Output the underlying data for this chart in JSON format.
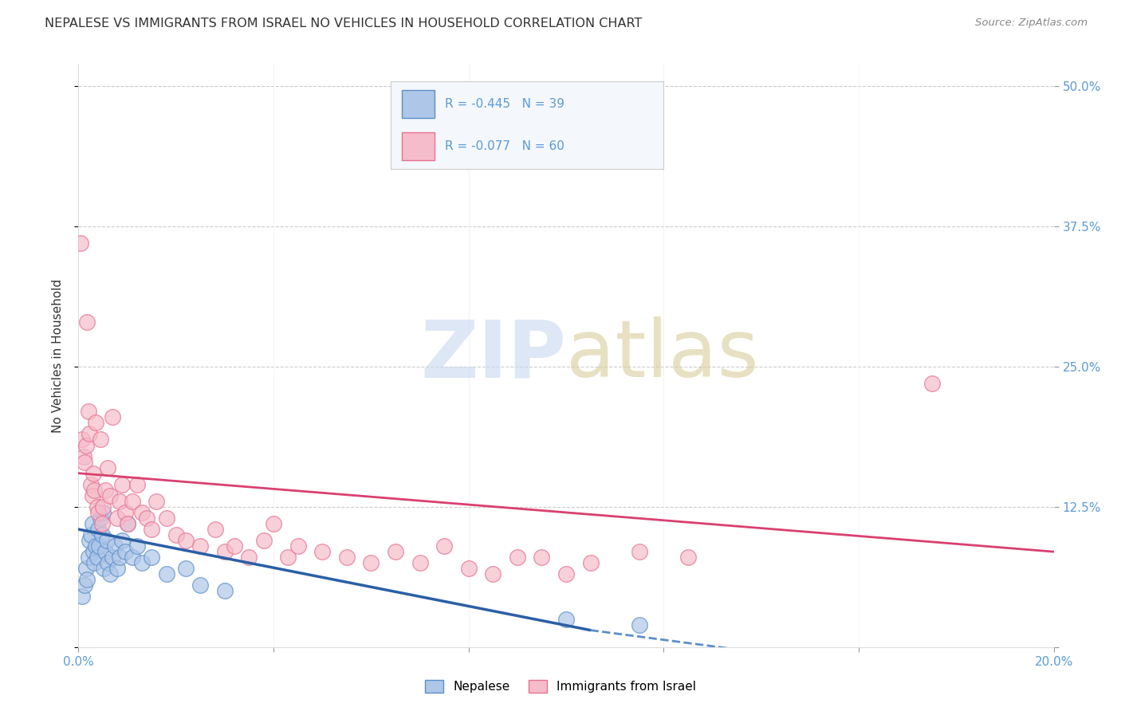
{
  "title": "NEPALESE VS IMMIGRANTS FROM ISRAEL NO VEHICLES IN HOUSEHOLD CORRELATION CHART",
  "source": "Source: ZipAtlas.com",
  "ylabel": "No Vehicles in Household",
  "xmin": 0.0,
  "xmax": 20.0,
  "ymin": 0.0,
  "ymax": 52.0,
  "legend_r1": "-0.445",
  "legend_n1": "39",
  "legend_r2": "-0.077",
  "legend_n2": "60",
  "blue_scatter_color": "#aec6e8",
  "blue_edge_color": "#5b8fc9",
  "pink_scatter_color": "#f5bccb",
  "pink_edge_color": "#e87090",
  "blue_line_color": "#2b5fa5",
  "pink_line_color": "#d94070",
  "tick_color": "#5b9bd5",
  "grid_color": "#cccccc",
  "text_color": "#333333",
  "source_color": "#888888",
  "watermark_zip_color": "#c8d8f0",
  "watermark_atlas_color": "#d8cc9a",
  "blue_scatter_x": [
    0.08,
    0.12,
    0.15,
    0.18,
    0.2,
    0.22,
    0.25,
    0.28,
    0.3,
    0.32,
    0.35,
    0.38,
    0.4,
    0.42,
    0.45,
    0.48,
    0.5,
    0.52,
    0.55,
    0.58,
    0.6,
    0.65,
    0.7,
    0.75,
    0.8,
    0.85,
    0.9,
    0.95,
    1.0,
    1.1,
    1.2,
    1.3,
    1.5,
    1.8,
    2.2,
    2.5,
    3.0,
    10.0,
    11.5
  ],
  "blue_scatter_y": [
    4.5,
    5.5,
    7.0,
    6.0,
    8.0,
    9.5,
    10.0,
    11.0,
    8.5,
    7.5,
    9.0,
    8.0,
    10.5,
    9.0,
    11.5,
    10.0,
    12.0,
    7.0,
    8.5,
    9.5,
    7.5,
    6.5,
    8.0,
    9.0,
    7.0,
    8.0,
    9.5,
    8.5,
    11.0,
    8.0,
    9.0,
    7.5,
    8.0,
    6.5,
    7.0,
    5.5,
    5.0,
    2.5,
    2.0
  ],
  "pink_scatter_x": [
    0.05,
    0.08,
    0.1,
    0.12,
    0.15,
    0.18,
    0.2,
    0.22,
    0.25,
    0.28,
    0.3,
    0.32,
    0.35,
    0.38,
    0.4,
    0.45,
    0.48,
    0.5,
    0.55,
    0.6,
    0.65,
    0.7,
    0.8,
    0.85,
    0.9,
    0.95,
    1.0,
    1.1,
    1.2,
    1.3,
    1.4,
    1.5,
    1.6,
    1.8,
    2.0,
    2.2,
    2.5,
    2.8,
    3.0,
    3.2,
    3.5,
    3.8,
    4.0,
    4.3,
    4.5,
    5.0,
    5.5,
    6.0,
    6.5,
    7.0,
    7.5,
    8.0,
    8.5,
    9.0,
    9.5,
    10.0,
    10.5,
    11.5,
    12.5,
    17.5
  ],
  "pink_scatter_y": [
    36.0,
    18.5,
    17.0,
    16.5,
    18.0,
    29.0,
    21.0,
    19.0,
    14.5,
    13.5,
    15.5,
    14.0,
    20.0,
    12.5,
    12.0,
    18.5,
    11.0,
    12.5,
    14.0,
    16.0,
    13.5,
    20.5,
    11.5,
    13.0,
    14.5,
    12.0,
    11.0,
    13.0,
    14.5,
    12.0,
    11.5,
    10.5,
    13.0,
    11.5,
    10.0,
    9.5,
    9.0,
    10.5,
    8.5,
    9.0,
    8.0,
    9.5,
    11.0,
    8.0,
    9.0,
    8.5,
    8.0,
    7.5,
    8.5,
    7.5,
    9.0,
    7.0,
    6.5,
    8.0,
    8.0,
    6.5,
    7.5,
    8.5,
    8.0,
    23.5
  ],
  "blue_line_x0": 0.0,
  "blue_line_y0": 10.5,
  "blue_line_x1": 10.5,
  "blue_line_y1": 1.5,
  "blue_dash_x0": 10.5,
  "blue_dash_y0": 1.5,
  "blue_dash_x1": 14.0,
  "blue_dash_y1": -0.5,
  "pink_line_x0": 0.0,
  "pink_line_y0": 15.5,
  "pink_line_x1": 20.0,
  "pink_line_y1": 8.5
}
